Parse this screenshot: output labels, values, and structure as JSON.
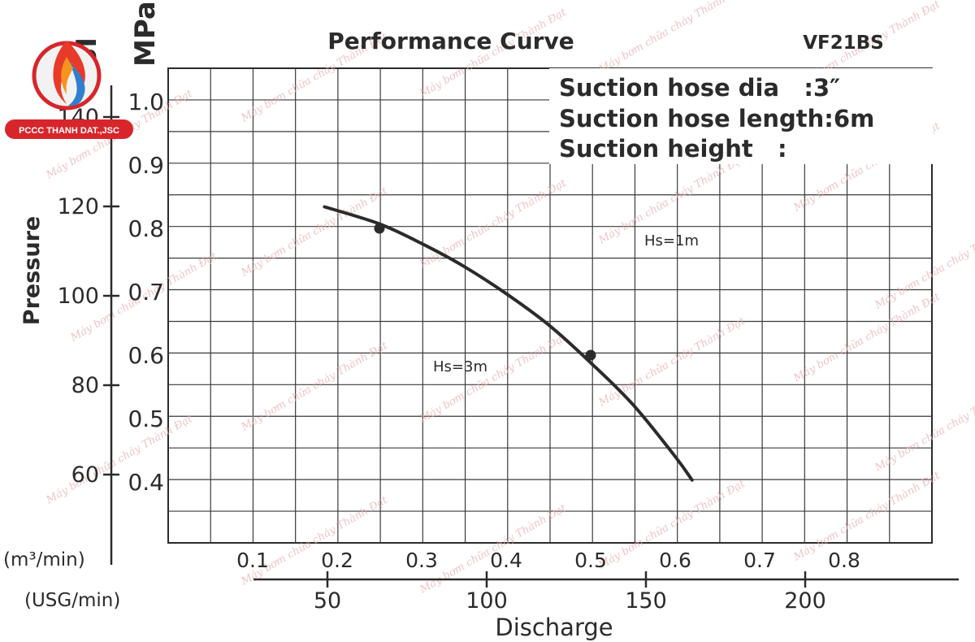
{
  "logo": {
    "company": "PCCC THANH DAT.,JSC",
    "colors": {
      "flame_red": "#e83a2a",
      "flame_orange": "#f7941d",
      "water_blue": "#2f7fd0",
      "banner": "#d7262b"
    }
  },
  "watermark": "Máy bơm chữa cháy Thành Đạt",
  "chart_data": {
    "type": "line",
    "title": "Performance Curve",
    "model": "VF21BS",
    "info_lines": [
      "Suction hose dia   :3″",
      "Suction hose length:6m",
      "Suction height   :"
    ],
    "ylabel": "Pressure",
    "xlabel": "Discharge",
    "y_axes": [
      {
        "unit": "PSI",
        "ticks": [
          60,
          80,
          100,
          120,
          140
        ]
      },
      {
        "unit": "MPa",
        "ticks": [
          0.4,
          0.5,
          0.6,
          0.7,
          0.8,
          0.9,
          1.0
        ],
        "ylim": [
          0.3,
          1.05
        ]
      }
    ],
    "x_axes": [
      {
        "unit": "(m³/min)",
        "ticks": [
          0.1,
          0.2,
          0.3,
          0.4,
          0.5,
          0.6,
          0.7,
          0.8
        ],
        "xlim": [
          0,
          0.9
        ]
      },
      {
        "unit": "(USG/min)",
        "ticks": [
          50,
          100,
          150,
          200
        ]
      }
    ],
    "grid": true,
    "series": [
      {
        "x": [
          0.185,
          0.25,
          0.3,
          0.35,
          0.4,
          0.45,
          0.5,
          0.55,
          0.6,
          0.62
        ],
        "y": [
          0.834,
          0.807,
          0.776,
          0.74,
          0.697,
          0.648,
          0.588,
          0.522,
          0.44,
          0.403
        ]
      }
    ],
    "markers": [
      {
        "label": "Hs=3m",
        "x": 0.25,
        "y": 0.8
      },
      {
        "label": "Hs=1m",
        "x": 0.5,
        "y": 0.6
      }
    ]
  }
}
